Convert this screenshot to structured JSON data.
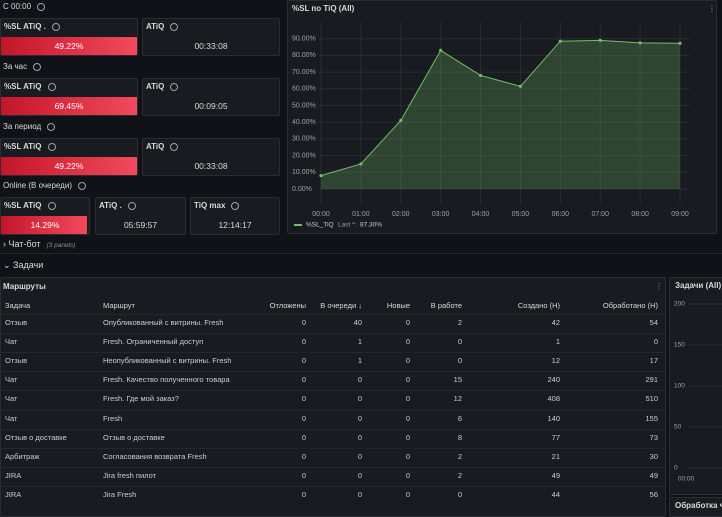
{
  "sections": {
    "today": "С 00:00",
    "hour": "За час",
    "period": "За период",
    "online": "Online (В очереди)"
  },
  "stats": [
    {
      "title": "%SL ATiQ .",
      "value": "49.22%"
    },
    {
      "title": "ATiQ",
      "value": "00:33:08"
    },
    {
      "title": "%SL ATiQ",
      "value": "69.45%"
    },
    {
      "title": "ATiQ",
      "value": "00:09:05"
    },
    {
      "title": "%SL ATiQ",
      "value": "49.22%"
    },
    {
      "title": "ATiQ",
      "value": "00:33:08"
    },
    {
      "title": "%SL ATiQ",
      "value": "14.29%"
    },
    {
      "title": "ATiQ .",
      "value": "05:59:57"
    },
    {
      "title": "TiQ max",
      "value": "12:14:17"
    }
  ],
  "sl_chart": {
    "type": "line",
    "title": "%SL по TiQ (All)",
    "categories": [
      "00:00",
      "01:00",
      "02:00",
      "03:00",
      "04:00",
      "05:00",
      "06:00",
      "07:00",
      "08:00",
      "09:00"
    ],
    "series": [
      {
        "name": "%SL_TiQ",
        "color": "#73bf69",
        "values": [
          8,
          15,
          41,
          83,
          68,
          61.5,
          88.5,
          89,
          87.5,
          87.3
        ]
      }
    ],
    "ylim": [
      0,
      100
    ],
    "yticks": [
      {
        "value": 0,
        "label": "0.00%"
      },
      {
        "value": 10,
        "label": "10.00%"
      },
      {
        "value": 20,
        "label": "20.00%"
      },
      {
        "value": 30,
        "label": "30.00%"
      },
      {
        "value": 40,
        "label": "40.00%"
      },
      {
        "value": 50,
        "label": "50.00%"
      },
      {
        "value": 60,
        "label": "60.00%"
      },
      {
        "value": 70,
        "label": "70.00%"
      },
      {
        "value": 80,
        "label": "80.00%"
      },
      {
        "value": 90,
        "label": "90.00%"
      }
    ],
    "grid": true,
    "legend_stat": "Last *:",
    "legend_last": "87.30%"
  },
  "chatbot": {
    "title": "Чат-бот",
    "note": "(3 panels)"
  },
  "tasks": "Задачи",
  "table": {
    "title": "Маршруты",
    "columns": [
      "Задача",
      "Маршрут",
      "Отложены",
      "В очереди ↓",
      "Новые",
      "В работе",
      "Создано (H)",
      "Обработано (H)"
    ],
    "rows": [
      [
        "Отзыв",
        "Опубликованный с витрины. Fresh",
        0,
        40,
        0,
        2,
        42,
        54
      ],
      [
        "Чат",
        "Fresh. Ограниченный доступ",
        0,
        1,
        0,
        0,
        1,
        0
      ],
      [
        "Отзыв",
        "Неопубликованный с витрины. Fresh",
        0,
        1,
        0,
        0,
        12,
        17
      ],
      [
        "Чат",
        "Fresh. Качество полученного товара",
        0,
        0,
        0,
        15,
        240,
        291
      ],
      [
        "Чат",
        "Fresh. Где мой заказ?",
        0,
        0,
        0,
        12,
        408,
        510
      ],
      [
        "Чат",
        "Fresh",
        0,
        0,
        0,
        6,
        140,
        155
      ],
      [
        "Отзыв о доставке",
        "Отзыв о доставке",
        0,
        0,
        0,
        8,
        77,
        73
      ],
      [
        "Арбитраж",
        "Согласования возврата Fresh",
        0,
        0,
        0,
        2,
        21,
        30
      ],
      [
        "JIRA",
        "Jira fresh пилот",
        0,
        0,
        0,
        2,
        49,
        49
      ],
      [
        "JIRA",
        "Jira Fresh",
        0,
        0,
        0,
        0,
        44,
        56
      ]
    ]
  },
  "side_panel": {
    "title": "Задачи (All)",
    "yticks": [
      0,
      50,
      100,
      150,
      200
    ],
    "xticks": [
      "00:00"
    ]
  },
  "bottom_panel_title": "Обработка ч"
}
